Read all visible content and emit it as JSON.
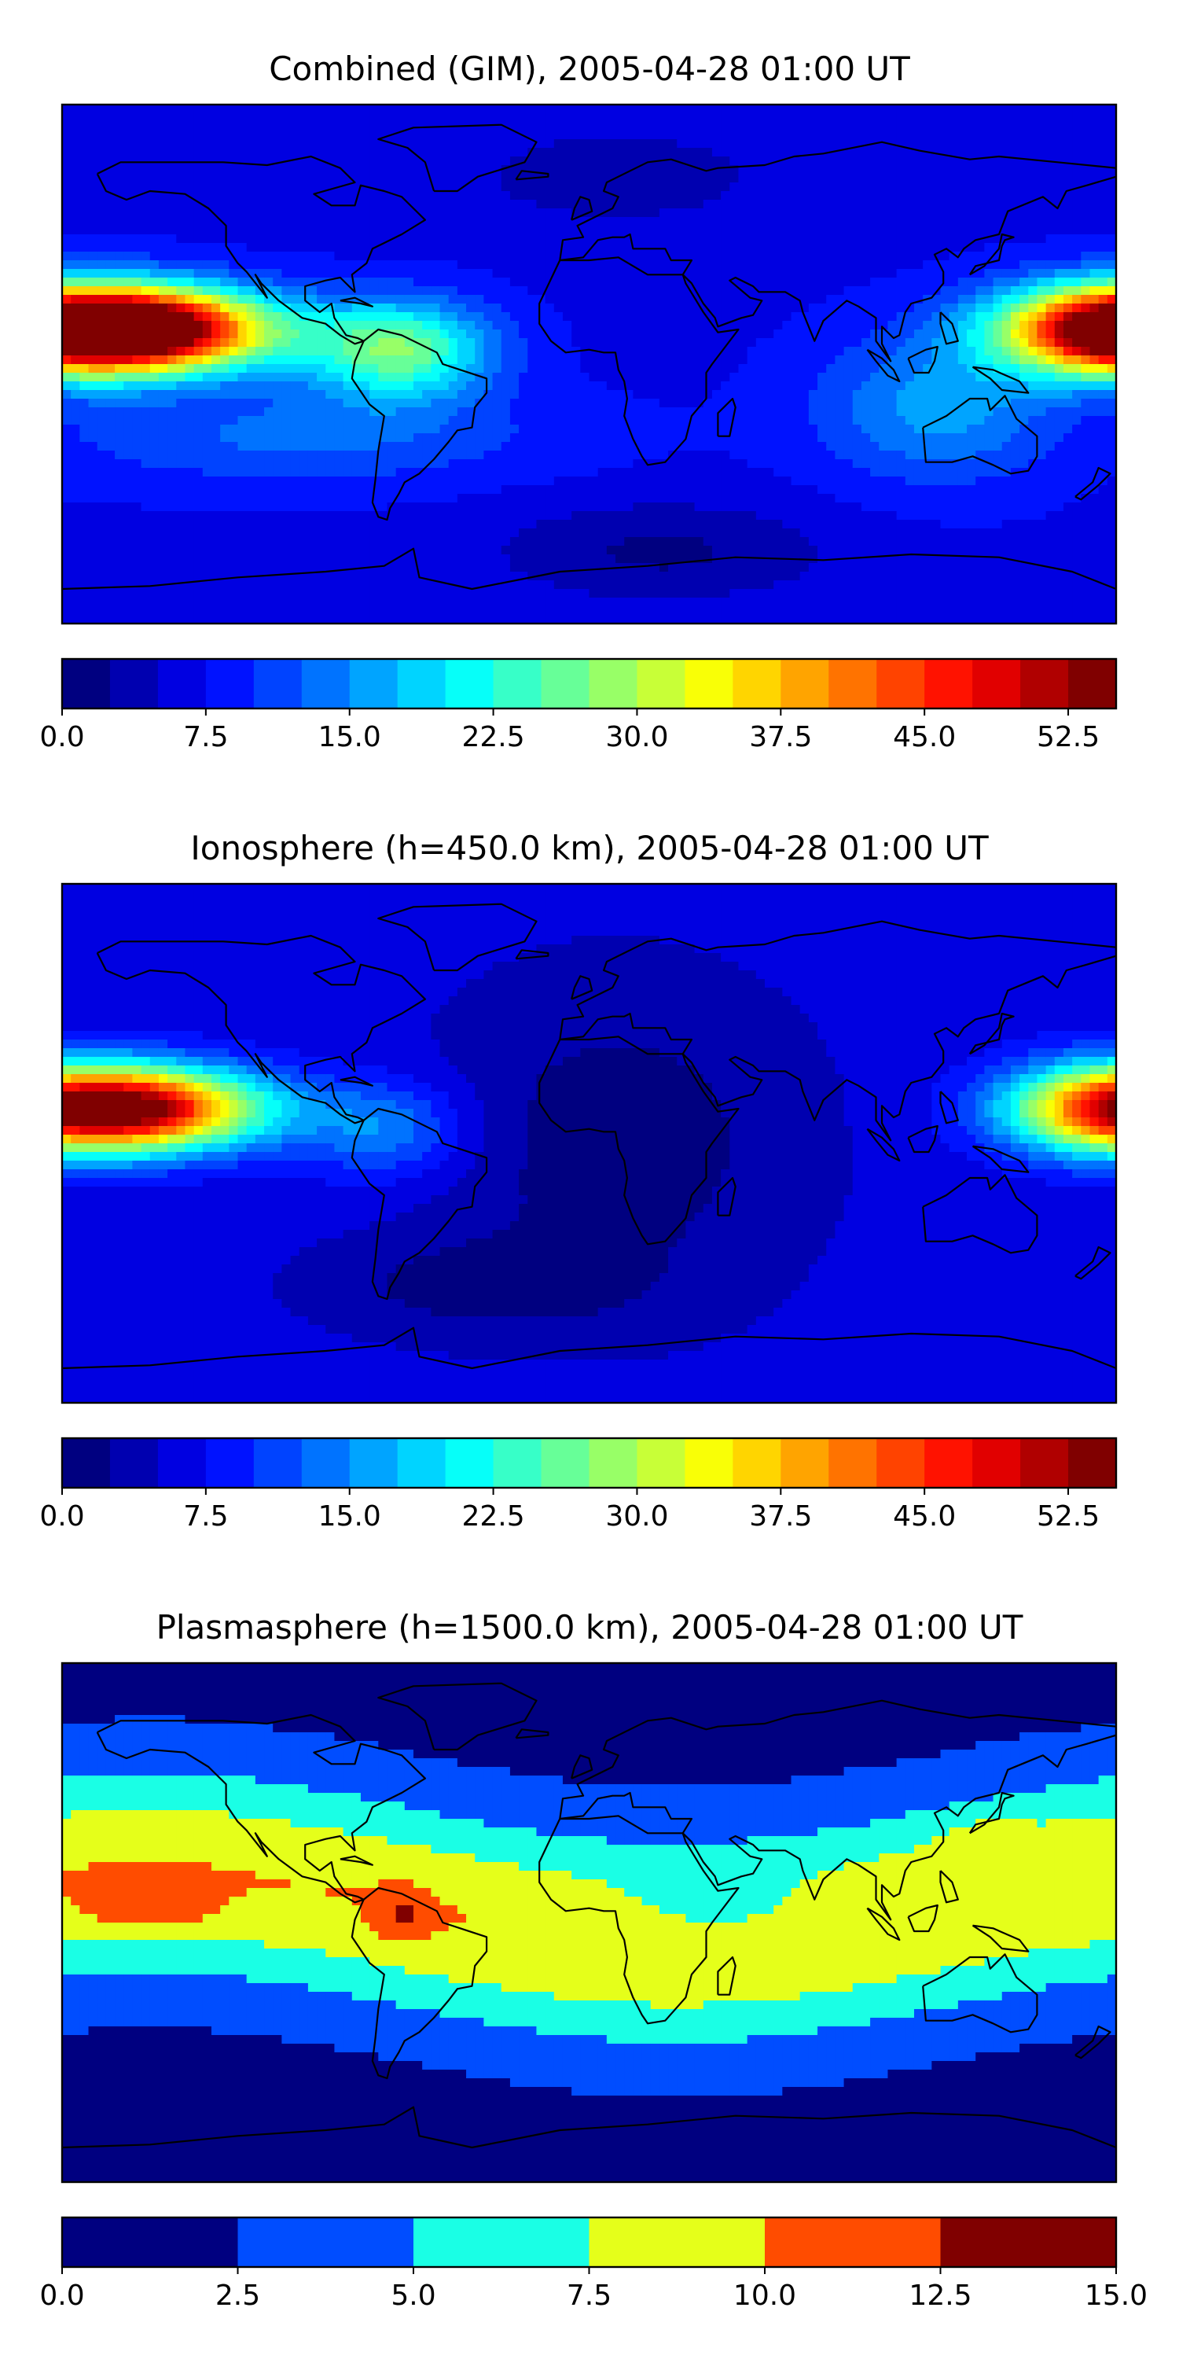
{
  "panels": [
    {
      "title": "Combined (GIM), 2005-04-28 01:00 UT",
      "field": "combined",
      "colorbar": {
        "vmin": 0.0,
        "vmax": 55.0,
        "n_levels": 22,
        "tick_values": [
          0.0,
          7.5,
          15.0,
          22.5,
          30.0,
          37.5,
          45.0,
          52.5
        ],
        "tick_labels": [
          "0.0",
          "7.5",
          "15.0",
          "22.5",
          "30.0",
          "37.5",
          "45.0",
          "52.5"
        ]
      }
    },
    {
      "title": "Ionosphere  (h=450.0 km), 2005-04-28 01:00 UT",
      "field": "ionosphere",
      "colorbar": {
        "vmin": 0.0,
        "vmax": 55.0,
        "n_levels": 22,
        "tick_values": [
          0.0,
          7.5,
          15.0,
          22.5,
          30.0,
          37.5,
          45.0,
          52.5
        ],
        "tick_labels": [
          "0.0",
          "7.5",
          "15.0",
          "22.5",
          "30.0",
          "37.5",
          "45.0",
          "52.5"
        ]
      }
    },
    {
      "title": "Plasmasphere (h=1500.0 km), 2005-04-28 01:00 UT",
      "field": "plasmasphere",
      "colorbar": {
        "vmin": 0.0,
        "vmax": 15.0,
        "n_levels": 6,
        "tick_values": [
          0.0,
          2.5,
          5.0,
          7.5,
          10.0,
          12.5,
          15.0
        ],
        "tick_labels": [
          "0.0",
          "2.5",
          "5.0",
          "7.5",
          "10.0",
          "12.5",
          "15.0"
        ]
      }
    }
  ],
  "colormap": "jet",
  "projection": "plate-carree"
}
